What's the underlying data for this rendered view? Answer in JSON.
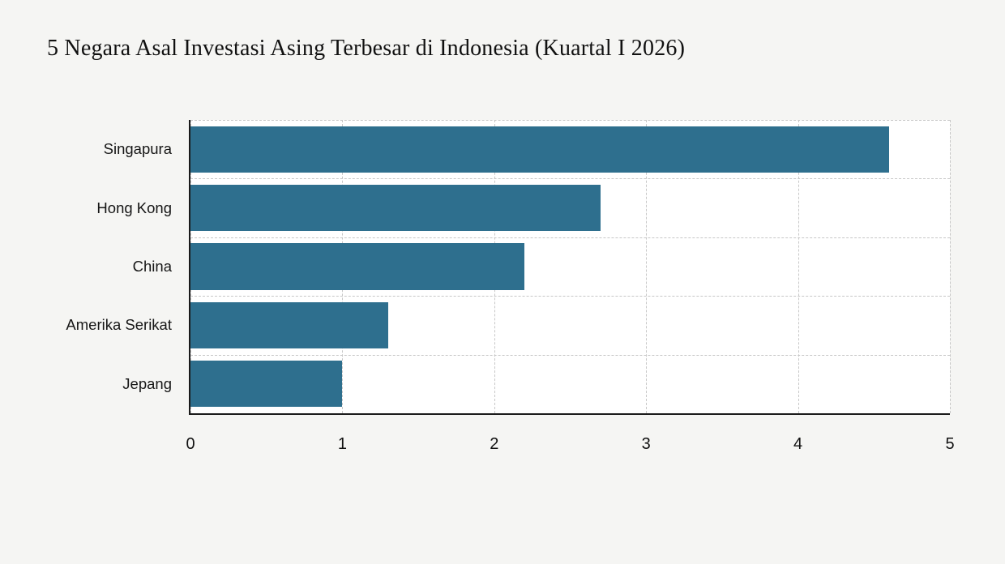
{
  "chart_data": {
    "type": "bar",
    "orientation": "horizontal",
    "title": "5 Negara Asal Investasi Asing Terbesar di Indonesia (Kuartal I 2026)",
    "categories": [
      "Singapura",
      "Hong Kong",
      "China",
      "Amerika Serikat",
      "Jepang"
    ],
    "values": [
      4.6,
      2.7,
      2.2,
      1.3,
      1.0
    ],
    "xlabel": "",
    "ylabel": "",
    "xlim": [
      0,
      5
    ],
    "xticks": [
      0,
      1,
      2,
      3,
      4,
      5
    ],
    "grid": true,
    "grid_style": "dashed",
    "legend": false
  },
  "colors": {
    "bar": "#2e6f8e",
    "background": "#f5f5f3",
    "plot_background": "#ffffff",
    "grid": "#c7c7c7",
    "axis": "#1b1b1b",
    "text": "#111111"
  }
}
